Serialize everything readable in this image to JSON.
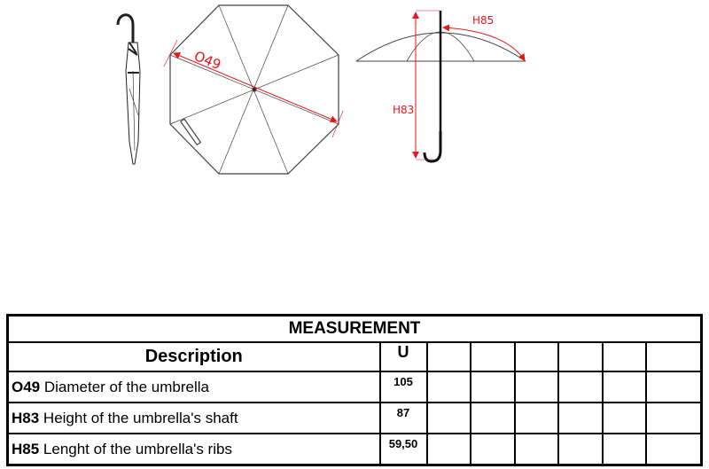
{
  "drawing": {
    "labels": {
      "diameter": "O49",
      "shaft_height": "H83",
      "rib_length": "H85"
    },
    "colors": {
      "dimension": "#e8161b",
      "outline": "#333333"
    }
  },
  "table": {
    "title": "MEASUREMENT",
    "headers": {
      "description": "Description",
      "unit": "U"
    },
    "empty_columns": 6,
    "rows": [
      {
        "code": "O49",
        "text": " Diameter of the umbrella",
        "value": "105"
      },
      {
        "code": "H83",
        "text": " Height of the umbrella's shaft",
        "value": "87"
      },
      {
        "code": "H85",
        "text": " Lenght of the umbrella's ribs",
        "value": "59,50"
      }
    ]
  }
}
